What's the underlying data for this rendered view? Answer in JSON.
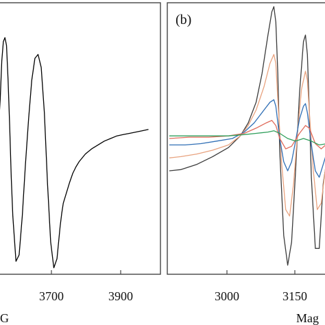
{
  "chart_data": [
    {
      "type": "line",
      "panel": "a",
      "xlabel_fragment": "G",
      "xticks": [
        3700,
        3900
      ],
      "xlim": [
        3465,
        3978
      ],
      "ylim": [
        -1.05,
        1.05
      ],
      "series": [
        {
          "color": "#000000",
          "x": [
            3465,
            3470,
            3475,
            3480,
            3485,
            3490,
            3495,
            3500,
            3505,
            3510,
            3520,
            3530,
            3540,
            3550,
            3560,
            3570,
            3580,
            3590,
            3600,
            3610,
            3620,
            3630,
            3640,
            3650,
            3660,
            3665,
            3670,
            3680,
            3690,
            3700,
            3710,
            3720,
            3740,
            3760,
            3780,
            3800,
            3820,
            3840,
            3860,
            3880,
            3900,
            3920,
            3940
          ],
          "y": [
            0.1,
            0.3,
            0.6,
            0.75,
            0.78,
            0.72,
            0.45,
            0.1,
            -0.3,
            -0.6,
            -0.95,
            -0.9,
            -0.6,
            -0.2,
            0.15,
            0.45,
            0.62,
            0.65,
            0.55,
            0.2,
            -0.35,
            -0.8,
            -1.0,
            -0.93,
            -0.68,
            -0.58,
            -0.5,
            -0.42,
            -0.34,
            -0.27,
            -0.22,
            -0.18,
            -0.12,
            -0.08,
            -0.05,
            -0.02,
            0.0,
            0.02,
            0.03,
            0.04,
            0.05,
            0.06,
            0.07
          ]
        }
      ]
    },
    {
      "type": "line",
      "panel": "b",
      "panel_label": "(b)",
      "xlabel_fragment": "Mag",
      "xticks": [
        3000,
        3150
      ],
      "xlim": [
        2825,
        3235
      ],
      "ylim": [
        -1.05,
        1.05
      ],
      "series": [
        {
          "color": "#3a3a3a",
          "x": [
            2830,
            2860,
            2900,
            2940,
            2980,
            3010,
            3030,
            3050,
            3065,
            3080,
            3090,
            3095,
            3100,
            3105,
            3110,
            3120,
            3130,
            3140,
            3150,
            3160,
            3170,
            3175,
            3180,
            3185,
            3190,
            3200,
            3210,
            3220,
            3230
          ],
          "y": [
            -0.25,
            -0.24,
            -0.2,
            -0.14,
            -0.07,
            0.02,
            0.12,
            0.28,
            0.5,
            0.8,
            0.98,
            1.02,
            0.9,
            0.5,
            -0.1,
            -0.75,
            -0.98,
            -0.8,
            -0.25,
            0.35,
            0.75,
            0.8,
            0.65,
            0.2,
            -0.3,
            -0.85,
            -0.85,
            -0.35,
            -0.15
          ]
        },
        {
          "color": "#e8a27e",
          "x": [
            2830,
            2860,
            2900,
            2940,
            2980,
            3010,
            3030,
            3050,
            3070,
            3085,
            3095,
            3100,
            3105,
            3115,
            3125,
            3135,
            3145,
            3155,
            3165,
            3175,
            3180,
            3185,
            3195,
            3205,
            3215,
            3225,
            3230
          ],
          "y": [
            -0.15,
            -0.14,
            -0.12,
            -0.09,
            -0.05,
            0.02,
            0.1,
            0.22,
            0.4,
            0.58,
            0.65,
            0.58,
            0.3,
            -0.2,
            -0.55,
            -0.6,
            -0.35,
            0.05,
            0.38,
            0.52,
            0.45,
            0.2,
            -0.25,
            -0.55,
            -0.5,
            -0.25,
            -0.15
          ]
        },
        {
          "color": "#2f6eb5",
          "x": [
            2830,
            2870,
            2910,
            2950,
            2990,
            3020,
            3045,
            3070,
            3085,
            3095,
            3100,
            3110,
            3120,
            3130,
            3140,
            3150,
            3160,
            3170,
            3175,
            3180,
            3190,
            3200,
            3210,
            3220,
            3230
          ],
          "y": [
            -0.05,
            -0.05,
            -0.04,
            -0.02,
            0.0,
            0.05,
            0.12,
            0.22,
            0.28,
            0.3,
            0.25,
            0.0,
            -0.18,
            -0.25,
            -0.18,
            -0.02,
            0.15,
            0.25,
            0.27,
            0.2,
            -0.05,
            -0.25,
            -0.3,
            -0.2,
            -0.1
          ]
        },
        {
          "color": "#e06a5a",
          "x": [
            2830,
            2880,
            2930,
            2980,
            3020,
            3050,
            3075,
            3090,
            3100,
            3110,
            3125,
            3140,
            3160,
            3175,
            3185,
            3200,
            3215,
            3230
          ],
          "y": [
            0.0,
            0.01,
            0.01,
            0.02,
            0.04,
            0.08,
            0.12,
            0.14,
            0.1,
            0.0,
            -0.08,
            -0.06,
            0.04,
            0.1,
            0.08,
            -0.04,
            -0.08,
            -0.04
          ]
        },
        {
          "color": "#2e9e5a",
          "x": [
            2830,
            2880,
            2930,
            2980,
            3020,
            3050,
            3080,
            3095,
            3110,
            3130,
            3150,
            3170,
            3190,
            3210,
            3230
          ],
          "y": [
            0.02,
            0.02,
            0.02,
            0.02,
            0.03,
            0.04,
            0.05,
            0.06,
            0.04,
            0.0,
            -0.02,
            0.0,
            -0.02,
            -0.05,
            -0.04
          ]
        }
      ]
    }
  ]
}
